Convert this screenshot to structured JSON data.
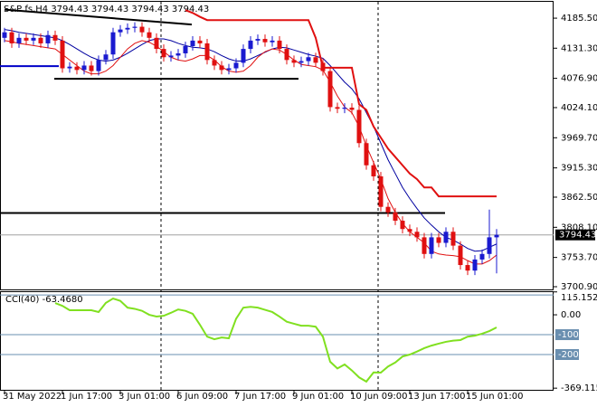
{
  "chart_data": [
    {
      "type": "candlestick",
      "title": "S&P fs,H4  3794.43 3794.43 3794.43 3794.43",
      "categories": [
        "31 May 2022",
        null,
        null,
        null,
        null,
        null,
        null,
        null,
        "1 Jun 17:00",
        null,
        null,
        null,
        null,
        null,
        null,
        null,
        "3 Jun 01:00",
        null,
        null,
        null,
        null,
        null,
        null,
        null,
        "6 Jun 09:00",
        null,
        null,
        null,
        null,
        null,
        null,
        null,
        "7 Jun 17:00",
        null,
        null,
        null,
        null,
        null,
        null,
        null,
        "9 Jun 01:00",
        null,
        null,
        null,
        null,
        null,
        null,
        null,
        "10 Jun 09:00",
        null,
        null,
        null,
        null,
        null,
        null,
        null,
        "13 Jun 17:00",
        null,
        null,
        null,
        null,
        null,
        null,
        null,
        "15 Jun 01:00",
        null,
        null,
        null,
        null
      ],
      "open": [
        4150,
        4160,
        4140,
        4150,
        4145,
        4150,
        4140,
        4155,
        4145,
        4095,
        4098,
        4092,
        4100,
        4090,
        4110,
        4120,
        4160,
        4165,
        4168,
        4170,
        4160,
        4150,
        4130,
        4115,
        4118,
        4122,
        4135,
        4145,
        4140,
        4110,
        4100,
        4092,
        4095,
        4105,
        4130,
        4145,
        4148,
        4142,
        4145,
        4130,
        4110,
        4105,
        4108,
        4115,
        4105,
        4090,
        4025,
        4022,
        4024,
        4020,
        3960,
        3920,
        3900,
        3845,
        3835,
        3820,
        3805,
        3800,
        3790,
        3760,
        3790,
        3780,
        3800,
        3775,
        3740,
        3730,
        3750,
        3760,
        3790
      ],
      "high": [
        4168,
        4168,
        4158,
        4158,
        4158,
        4158,
        4163,
        4163,
        4153,
        4106,
        4106,
        4108,
        4108,
        4118,
        4128,
        4168,
        4173,
        4176,
        4178,
        4178,
        4168,
        4158,
        4138,
        4126,
        4130,
        4143,
        4153,
        4153,
        4148,
        4118,
        4108,
        4103,
        4113,
        4138,
        4153,
        4156,
        4156,
        4153,
        4153,
        4138,
        4118,
        4116,
        4123,
        4123,
        4113,
        4098,
        4033,
        4032,
        4032,
        4028,
        3968,
        3928,
        3908,
        3853,
        3843,
        3828,
        3813,
        3808,
        3798,
        3798,
        3798,
        3808,
        3808,
        3783,
        3748,
        3758,
        3768,
        3840,
        3805
      ],
      "low": [
        4142,
        4132,
        4132,
        4137,
        4137,
        4132,
        4132,
        4137,
        4087,
        4087,
        4084,
        4084,
        4082,
        4082,
        4102,
        4112,
        4152,
        4157,
        4160,
        4152,
        4142,
        4122,
        4107,
        4107,
        4110,
        4114,
        4127,
        4132,
        4102,
        4092,
        4084,
        4084,
        4087,
        4097,
        4122,
        4137,
        4134,
        4134,
        4122,
        4102,
        4097,
        4097,
        4100,
        4097,
        4082,
        4017,
        4014,
        4014,
        4012,
        3952,
        3912,
        3892,
        3837,
        3827,
        3812,
        3797,
        3792,
        3782,
        3752,
        3752,
        3772,
        3772,
        3767,
        3732,
        3722,
        3722,
        3742,
        3752,
        3725
      ],
      "close": [
        4160,
        4140,
        4150,
        4145,
        4150,
        4140,
        4155,
        4145,
        4095,
        4098,
        4092,
        4100,
        4090,
        4110,
        4120,
        4160,
        4165,
        4168,
        4170,
        4160,
        4150,
        4130,
        4115,
        4118,
        4122,
        4135,
        4145,
        4140,
        4110,
        4100,
        4092,
        4095,
        4105,
        4130,
        4145,
        4148,
        4142,
        4145,
        4130,
        4110,
        4105,
        4108,
        4115,
        4105,
        4090,
        4025,
        4022,
        4024,
        4020,
        3960,
        3920,
        3900,
        3845,
        3835,
        3820,
        3805,
        3800,
        3790,
        3760,
        3790,
        3780,
        3800,
        3775,
        3740,
        3730,
        3750,
        3760,
        3790,
        3794.43
      ],
      "up_color": "#1a1ad0",
      "down_color": "#e01010",
      "series": [
        {
          "color": "#0000a0",
          "values": [
            4165,
            4163,
            4160,
            4158,
            4156,
            4154,
            4152,
            4150,
            4145,
            4138,
            4130,
            4122,
            4115,
            4110,
            4108,
            4110,
            4115,
            4122,
            4130,
            4138,
            4145,
            4148,
            4148,
            4145,
            4140,
            4136,
            4133,
            4132,
            4130,
            4125,
            4118,
            4112,
            4108,
            4108,
            4112,
            4118,
            4124,
            4130,
            4133,
            4132,
            4128,
            4124,
            4120,
            4117,
            4113,
            4100,
            4085,
            4070,
            4058,
            4040,
            4015,
            3990,
            3960,
            3930,
            3905,
            3880,
            3860,
            3842,
            3825,
            3812,
            3800,
            3790,
            3785,
            3778,
            3770,
            3765,
            3766,
            3772,
            3778
          ]
        },
        {
          "color": "#e01010",
          "values": [
            4145,
            4143,
            4140,
            4138,
            4136,
            4134,
            4132,
            4130,
            4120,
            4110,
            4100,
            4090,
            4085,
            4085,
            4090,
            4100,
            4115,
            4130,
            4140,
            4145,
            4142,
            4135,
            4125,
            4115,
            4110,
            4108,
            4112,
            4118,
            4118,
            4110,
            4098,
            4090,
            4088,
            4090,
            4100,
            4115,
            4125,
            4130,
            4128,
            4120,
            4110,
            4102,
            4100,
            4098,
            4092,
            4070,
            4045,
            4025,
            4015,
            3990,
            3955,
            3925,
            3895,
            3860,
            3835,
            3815,
            3800,
            3790,
            3780,
            3765,
            3760,
            3758,
            3757,
            3755,
            3748,
            3742,
            3742,
            3748,
            3758
          ]
        },
        {
          "color": "#e01010",
          "values": [
            null,
            null,
            null,
            null,
            null,
            null,
            null,
            null,
            null,
            null,
            null,
            null,
            null,
            null,
            null,
            null,
            null,
            null,
            null,
            null,
            null,
            null,
            null,
            null,
            null,
            4200,
            4195,
            4188,
            4182,
            4182,
            4182,
            4182,
            4182,
            4182,
            4182,
            4182,
            4182,
            4182,
            4182,
            4182,
            4182,
            4182,
            4182,
            4150,
            4096,
            4096,
            4096,
            4096,
            4096,
            4030,
            4020,
            3990,
            3970,
            3950,
            3935,
            3920,
            3905,
            3895,
            3880,
            3880,
            3864,
            3864,
            3864,
            3864,
            3864,
            3864,
            3864,
            3864,
            3864
          ]
        }
      ],
      "trend_lines": [
        [
          4201,
          4174
        ],
        [
          4076,
          4076
        ],
        [
          3834,
          3834
        ],
        [
          4099,
          4099
        ]
      ],
      "last_price": {
        "value": 3794.43,
        "label": "3794.43"
      },
      "ylim": [
        3696,
        4215
      ],
      "yticks": [
        {
          "value": 4185.5,
          "label": "4185.50"
        },
        {
          "value": 4131.3,
          "label": "4131.30"
        },
        {
          "value": 4076.9,
          "label": "4076.90"
        },
        {
          "value": 4024.1,
          "label": "4024.10"
        },
        {
          "value": 3969.7,
          "label": "3969.70"
        },
        {
          "value": 3915.3,
          "label": "3915.30"
        },
        {
          "value": 3862.5,
          "label": "3862.50"
        },
        {
          "value": 3808.1,
          "label": "3808.10"
        },
        {
          "value": 3753.7,
          "label": "3753.70"
        },
        {
          "value": 3700.9,
          "label": "3700.90"
        }
      ]
    },
    {
      "type": "line",
      "title": "CCI(40) -63.4680",
      "color": "#80e020",
      "values": [
        null,
        null,
        null,
        null,
        null,
        null,
        null,
        59,
        45,
        23,
        23,
        23,
        23,
        14,
        60,
        82,
        70,
        36,
        30,
        20,
        0,
        -9,
        -5,
        10,
        27,
        20,
        5,
        -50,
        -110,
        -123,
        -114,
        -118,
        -20,
        36,
        40,
        36,
        25,
        14,
        -9,
        -35,
        -45,
        -55,
        -55,
        -60,
        -110,
        -236,
        -270,
        -250,
        -280,
        -315,
        -336,
        -290,
        -291,
        -260,
        -240,
        -210,
        -200,
        -185,
        -168,
        -155,
        -145,
        -136,
        -130,
        -127,
        -110,
        -105,
        -95,
        -82,
        -63.468
      ],
      "levels": [
        100,
        -100,
        -200
      ],
      "ylim": [
        -382,
        114
      ],
      "yticks": [
        115.1521,
        {
          "value": 0,
          "label": "0.00"
        },
        -369.1159
      ],
      "level_labels": [
        {
          "value": 100,
          "label": "100"
        },
        {
          "value": -100,
          "label": "-100"
        },
        {
          "value": -200,
          "label": "-200"
        }
      ]
    }
  ]
}
